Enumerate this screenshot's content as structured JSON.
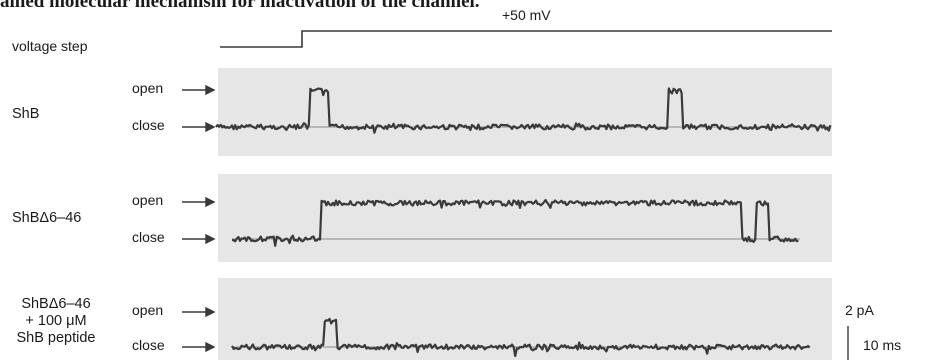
{
  "caption": "ained molecular mechanism for inactivation of the channel.",
  "voltage_step": {
    "label": "voltage step",
    "level_label": "+50 mV"
  },
  "state_labels": {
    "open": "open",
    "close": "close"
  },
  "conditions": [
    {
      "id": "shb",
      "label_lines": [
        "ShB"
      ],
      "openings": [
        [
          0.153,
          0.182
        ],
        [
          0.735,
          0.758
        ]
      ]
    },
    {
      "id": "shb-d6-46",
      "label_lines": [
        "ShBΔ6–46"
      ],
      "openings": [
        [
          0.155,
          0.898
        ],
        [
          0.922,
          0.944
        ]
      ]
    },
    {
      "id": "shb-d6-46-peptide",
      "label_lines": [
        "ShBΔ6–46",
        "+ 100 μM",
        "ShB peptide"
      ],
      "openings": [
        [
          0.158,
          0.181
        ]
      ]
    }
  ],
  "scale_bar": {
    "current": "2 pA",
    "time": "10 ms"
  },
  "colors": {
    "panel": "#e6e6e6",
    "trace": "#3a3a3a",
    "text": "#1a1a1a"
  }
}
